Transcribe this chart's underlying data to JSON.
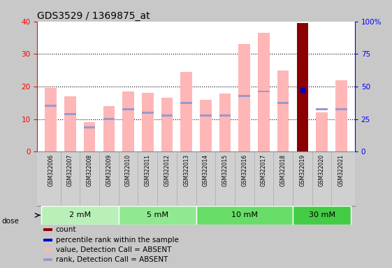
{
  "title": "GDS3529 / 1369875_at",
  "samples": [
    "GSM322006",
    "GSM322007",
    "GSM322008",
    "GSM322009",
    "GSM322010",
    "GSM322011",
    "GSM322012",
    "GSM322013",
    "GSM322014",
    "GSM322015",
    "GSM322016",
    "GSM322017",
    "GSM322018",
    "GSM322019",
    "GSM322020",
    "GSM322021"
  ],
  "values": [
    19.5,
    17.0,
    9.0,
    14.0,
    18.5,
    18.0,
    16.5,
    24.5,
    15.8,
    17.8,
    33.0,
    36.5,
    25.0,
    39.5,
    12.0,
    22.0
  ],
  "ranks": [
    14.0,
    11.5,
    7.5,
    10.0,
    13.0,
    12.0,
    11.0,
    15.0,
    11.0,
    11.0,
    17.0,
    18.5,
    15.0,
    19.0,
    13.0,
    13.0
  ],
  "rank_heights": [
    1.2,
    1.2,
    1.2,
    1.2,
    1.2,
    1.2,
    1.2,
    1.2,
    1.2,
    1.2,
    1.2,
    1.2,
    1.2,
    1.2,
    1.2,
    1.2
  ],
  "is_count": [
    false,
    false,
    false,
    false,
    false,
    false,
    false,
    false,
    false,
    false,
    false,
    false,
    false,
    true,
    false,
    false
  ],
  "doses": [
    {
      "label": "2 mM",
      "start": 0,
      "end": 4,
      "color": "#b8f0b8"
    },
    {
      "label": "5 mM",
      "start": 4,
      "end": 8,
      "color": "#90e890"
    },
    {
      "label": "10 mM",
      "start": 8,
      "end": 13,
      "color": "#68dd68"
    },
    {
      "label": "30 mM",
      "start": 13,
      "end": 16,
      "color": "#44cc44"
    }
  ],
  "bar_color_absent": "#ffb6b6",
  "bar_color_rank_absent": "#9999cc",
  "bar_color_count": "#8b0000",
  "rank_dot_color": "#0000cc",
  "ylim_left": [
    0,
    40
  ],
  "ylim_right": [
    0,
    100
  ],
  "yticks_left": [
    0,
    10,
    20,
    30,
    40
  ],
  "ytick_labels_right": [
    "0",
    "25",
    "50",
    "75",
    "100%"
  ],
  "yticks_right": [
    0,
    25,
    50,
    75,
    100
  ],
  "background_color": "#c8c8c8",
  "plot_bg": "#ffffff",
  "sample_label_bg": "#d0d0d0",
  "legend_items": [
    {
      "color": "#8b0000",
      "label": "count"
    },
    {
      "color": "#0000cc",
      "label": "percentile rank within the sample"
    },
    {
      "color": "#ffb6b6",
      "label": "value, Detection Call = ABSENT"
    },
    {
      "color": "#9999cc",
      "label": "rank, Detection Call = ABSENT"
    }
  ]
}
